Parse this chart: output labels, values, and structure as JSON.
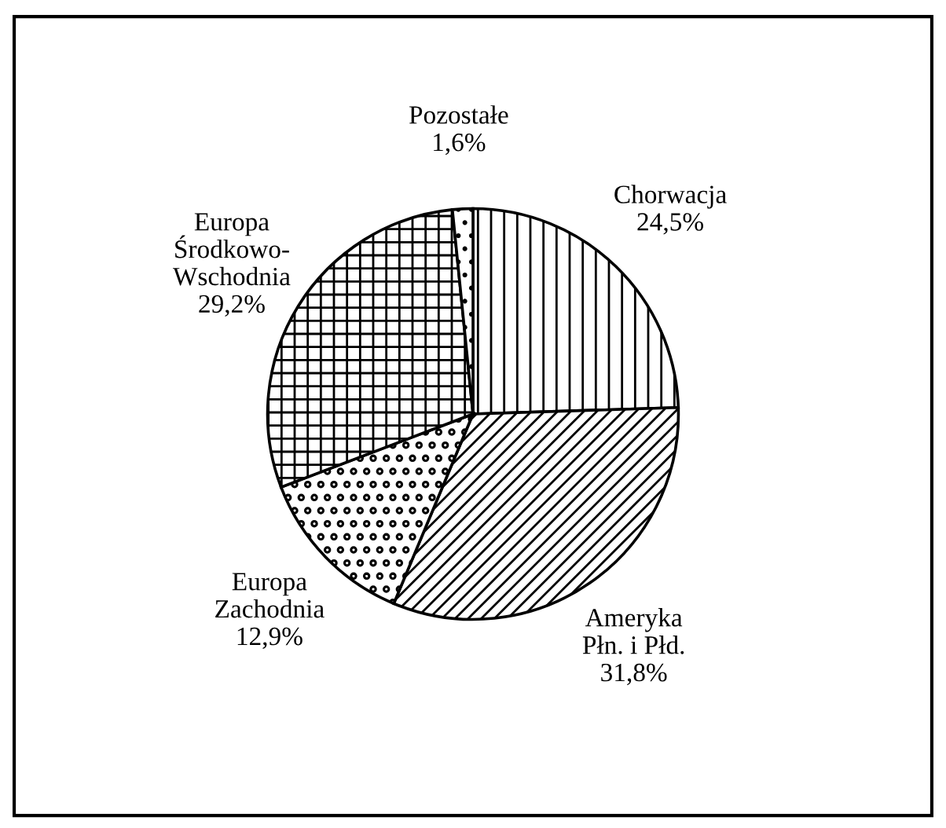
{
  "chart_data": {
    "type": "pie",
    "categories": [
      "Chorwacja",
      "Ameryka\nPłn. i Płd.",
      "Europa\nZachodnia",
      "Europa\nŚrodkowo-\nWschodnia",
      "Pozostałe"
    ],
    "values": [
      24.5,
      31.8,
      12.9,
      29.2,
      1.6
    ],
    "value_labels": [
      "24,5%",
      "31,8%",
      "12,9%",
      "29,2%",
      "1,6%"
    ],
    "colors": [
      "#ffffff",
      "#ffffff",
      "#ffffff",
      "#ffffff",
      "#ffffff"
    ],
    "legend": false
  }
}
